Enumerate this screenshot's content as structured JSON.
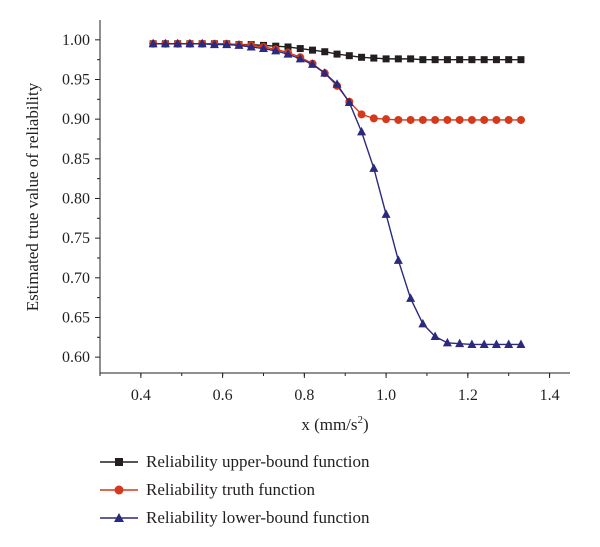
{
  "chart_data": {
    "type": "line",
    "xlabel": "x (mm/s",
    "xlabel_sup": "2",
    "xlabel_tail": ")",
    "ylabel": "Estimated true value of reliability",
    "xlim": [
      0.3,
      1.45
    ],
    "ylim": [
      0.58,
      1.025
    ],
    "x_ticks": [
      "0.4",
      "0.6",
      "0.8",
      "1.0",
      "1.2",
      "1.4"
    ],
    "x_tick_values": [
      0.4,
      0.6,
      0.8,
      1.0,
      1.2,
      1.4
    ],
    "y_ticks": [
      "1.00",
      "0.95",
      "0.90",
      "0.85",
      "0.80",
      "0.75",
      "0.70",
      "0.65",
      "0.60"
    ],
    "y_tick_values": [
      1.0,
      0.95,
      0.9,
      0.85,
      0.8,
      0.75,
      0.7,
      0.65,
      0.6
    ],
    "grid": false,
    "legend_position": "bottom",
    "x": [
      0.43,
      0.46,
      0.49,
      0.52,
      0.55,
      0.58,
      0.61,
      0.64,
      0.67,
      0.7,
      0.73,
      0.76,
      0.79,
      0.82,
      0.85,
      0.88,
      0.91,
      0.94,
      0.97,
      1.0,
      1.03,
      1.06,
      1.09,
      1.12,
      1.15,
      1.18,
      1.21,
      1.24,
      1.27,
      1.3,
      1.33
    ],
    "series": [
      {
        "name": "Reliability upper-bound function",
        "color": "#231f20",
        "marker": "square",
        "values": [
          0.995,
          0.995,
          0.995,
          0.995,
          0.995,
          0.995,
          0.995,
          0.994,
          0.994,
          0.993,
          0.992,
          0.991,
          0.989,
          0.987,
          0.985,
          0.982,
          0.98,
          0.978,
          0.977,
          0.976,
          0.976,
          0.976,
          0.975,
          0.975,
          0.975,
          0.975,
          0.975,
          0.975,
          0.975,
          0.975,
          0.975
        ]
      },
      {
        "name": "Reliability truth function",
        "color": "#d4391b",
        "marker": "circle",
        "values": [
          0.995,
          0.995,
          0.995,
          0.995,
          0.995,
          0.995,
          0.995,
          0.994,
          0.993,
          0.991,
          0.988,
          0.984,
          0.978,
          0.97,
          0.958,
          0.942,
          0.922,
          0.906,
          0.901,
          0.9,
          0.899,
          0.899,
          0.899,
          0.899,
          0.899,
          0.899,
          0.899,
          0.899,
          0.899,
          0.899,
          0.899
        ]
      },
      {
        "name": "Reliability lower-bound function",
        "color": "#2b2a7e",
        "marker": "triangle",
        "values": [
          0.995,
          0.995,
          0.995,
          0.995,
          0.995,
          0.994,
          0.994,
          0.993,
          0.991,
          0.989,
          0.986,
          0.982,
          0.976,
          0.969,
          0.958,
          0.944,
          0.921,
          0.884,
          0.838,
          0.78,
          0.722,
          0.674,
          0.642,
          0.626,
          0.618,
          0.617,
          0.616,
          0.616,
          0.616,
          0.616,
          0.616
        ]
      }
    ]
  }
}
